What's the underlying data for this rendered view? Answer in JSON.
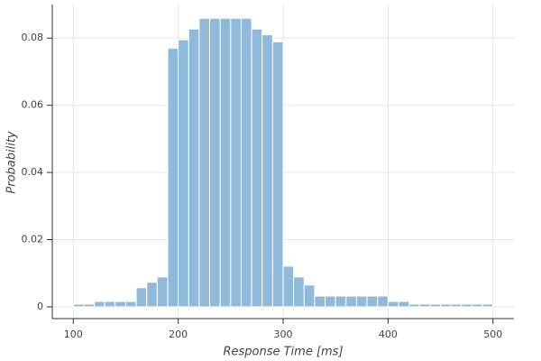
{
  "chart_data": {
    "type": "histogram",
    "x_label": "Response Time [ms]",
    "y_label": "Probability",
    "bins": [
      100,
      110,
      120,
      130,
      140,
      150,
      160,
      170,
      180,
      190,
      200,
      210,
      220,
      230,
      240,
      250,
      260,
      270,
      280,
      290,
      300,
      310,
      320,
      330,
      340,
      350,
      360,
      370,
      380,
      390,
      400,
      410,
      420,
      430,
      440,
      450,
      460,
      470,
      480,
      490,
      500
    ],
    "values": [
      0.0008,
      0.0008,
      0.0016,
      0.0016,
      0.0016,
      0.0016,
      0.0057,
      0.0073,
      0.0089,
      0.077,
      0.0795,
      0.0827,
      0.0859,
      0.0859,
      0.0859,
      0.0859,
      0.0859,
      0.0827,
      0.081,
      0.0789,
      0.0121,
      0.0089,
      0.0065,
      0.0032,
      0.0032,
      0.0032,
      0.0032,
      0.0032,
      0.0032,
      0.0032,
      0.0016,
      0.0016,
      0.0008,
      0.0008,
      0.0008,
      0.0008,
      0.0008,
      0.0008,
      0.0008,
      0.0008
    ],
    "color": "#8fbad9",
    "xlim": [
      80,
      520
    ],
    "ylim": [
      -0.0035,
      0.09
    ],
    "xticks": [
      100,
      200,
      300,
      400,
      500
    ],
    "yticks": [
      0,
      0.02,
      0.04,
      0.06,
      0.08
    ],
    "grid": true
  }
}
